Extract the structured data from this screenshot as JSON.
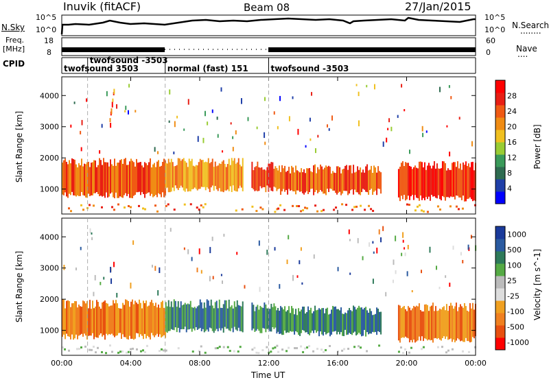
{
  "header": {
    "station": "Inuvik (fitACF)",
    "beam": "Beam 08",
    "date": "27/Jan/2015"
  },
  "nsky_panel": {
    "left_label": "N.Sky",
    "left_ticks": [
      "10^5",
      "10^0"
    ],
    "right_ticks": [
      "10^5",
      "10^0"
    ],
    "right_label": "N.Search",
    "right_marker": "........"
  },
  "freq_panel": {
    "left_label_1": "Freq.",
    "left_label_2": "[MHz]",
    "left_ticks": [
      "18",
      "8"
    ],
    "right_ticks": [
      "60",
      "0"
    ],
    "right_label": "Nave",
    "right_marker": "...."
  },
  "cpid_panel": {
    "label": "CPID",
    "segments": [
      {
        "text": "twofsound 3503",
        "start_hour": 0.0
      },
      {
        "text": "twofsound -3503",
        "start_hour": 1.5
      },
      {
        "text": "normal (fast) 151",
        "start_hour": 6.0
      },
      {
        "text": "twofsound -3503",
        "start_hour": 12.0
      }
    ]
  },
  "colors": {
    "power_scale": [
      "#0000ff",
      "#1f3fa8",
      "#2e6b50",
      "#3a9a5a",
      "#99cc33",
      "#f0c020",
      "#f08c14",
      "#f05a14",
      "#e81e14",
      "#ff0000"
    ],
    "velocity_scale": [
      "#1a3a9a",
      "#2a5aa0",
      "#2e7a5a",
      "#55aa44",
      "#bbbbbb",
      "#dddddd",
      "#f0a020",
      "#f08020",
      "#e85010",
      "#ff0000"
    ]
  },
  "chart_data": [
    {
      "type": "heatmap",
      "title": "",
      "xlabel": "",
      "ylabel": "Slant Range [km]",
      "xlim": [
        0,
        24
      ],
      "ylim": [
        200,
        4600
      ],
      "x_ticks": [
        "00:00",
        "04:00",
        "08:00",
        "12:00",
        "16:00",
        "20:00",
        "00:00"
      ],
      "y_ticks": [
        1000,
        2000,
        3000,
        4000
      ],
      "colorbar": {
        "label": "Power [dB]",
        "ticks": [
          4,
          8,
          12,
          16,
          20,
          24,
          28
        ],
        "range": [
          0,
          32
        ]
      },
      "main_echo_bands": [
        {
          "from_hour": 0.0,
          "to_hour": 6.0,
          "range_km": [
            700,
            2000
          ],
          "value_db": 26
        },
        {
          "from_hour": 6.0,
          "to_hour": 10.5,
          "range_km": [
            900,
            2000
          ],
          "value_db": 20
        },
        {
          "from_hour": 11.0,
          "to_hour": 12.5,
          "range_km": [
            900,
            1900
          ],
          "value_db": 26
        },
        {
          "from_hour": 12.5,
          "to_hour": 18.5,
          "range_km": [
            800,
            1800
          ],
          "value_db": 24
        },
        {
          "from_hour": 19.5,
          "to_hour": 24.0,
          "range_km": [
            600,
            1900
          ],
          "value_db": 28
        }
      ]
    },
    {
      "type": "heatmap",
      "title": "",
      "xlabel": "Time UT",
      "ylabel": "Slant Range [km]",
      "xlim": [
        0,
        24
      ],
      "ylim": [
        200,
        4600
      ],
      "x_ticks": [
        "00:00",
        "04:00",
        "08:00",
        "12:00",
        "16:00",
        "20:00",
        "00:00"
      ],
      "y_ticks": [
        1000,
        2000,
        3000,
        4000
      ],
      "colorbar": {
        "label": "Velocity [m s^-1]",
        "ticks": [
          1000,
          500,
          100,
          25,
          -25,
          -100,
          -500,
          -1000
        ]
      },
      "main_echo_bands": [
        {
          "from_hour": 0.0,
          "to_hour": 6.0,
          "range_km": [
            700,
            2000
          ],
          "value_ms": -150
        },
        {
          "from_hour": 6.0,
          "to_hour": 10.5,
          "range_km": [
            900,
            2000
          ],
          "value_ms": 200
        },
        {
          "from_hour": 11.0,
          "to_hour": 12.5,
          "range_km": [
            900,
            1900
          ],
          "value_ms": 300
        },
        {
          "from_hour": 12.5,
          "to_hour": 18.5,
          "range_km": [
            800,
            1800
          ],
          "value_ms": 150
        },
        {
          "from_hour": 19.5,
          "to_hour": 24.0,
          "range_km": [
            600,
            1900
          ],
          "value_ms": -300
        }
      ]
    }
  ]
}
